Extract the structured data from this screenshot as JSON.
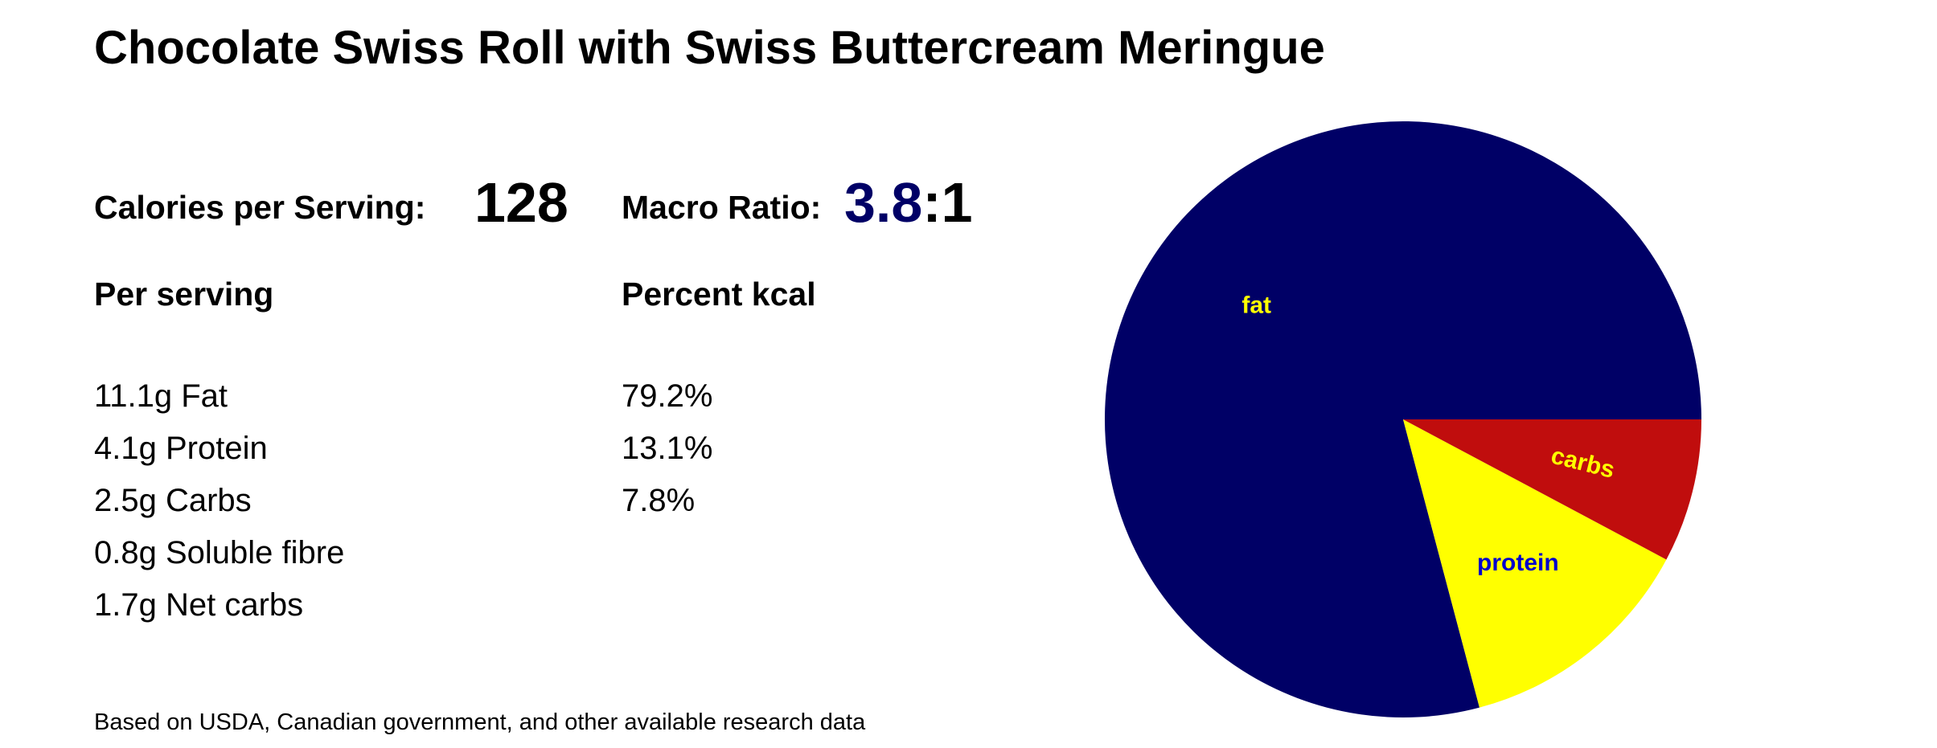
{
  "title": "Chocolate Swiss Roll with Swiss Buttercream Meringue",
  "calories": {
    "label": "Calories per Serving:",
    "value": "128"
  },
  "macro_ratio": {
    "label": "Macro Ratio:",
    "value": "3.8",
    "suffix": ":1"
  },
  "per_serving": {
    "heading": "Per serving",
    "items": [
      "11.1g Fat",
      "4.1g Protein",
      "2.5g Carbs",
      "0.8g Soluble fibre",
      "1.7g Net carbs"
    ]
  },
  "percent_kcal": {
    "heading": "Percent kcal",
    "items": [
      "79.2%",
      "13.1%",
      "7.8%"
    ]
  },
  "footnote": "Based on USDA, Canadian government, and other available research data",
  "chart_data": {
    "type": "pie",
    "slices": [
      {
        "label": "fat",
        "value": 79.2,
        "color": "#000066",
        "label_color": "#ffff00"
      },
      {
        "label": "protein",
        "value": 13.1,
        "color": "#ffff00",
        "label_color": "#0000cc"
      },
      {
        "label": "carbs",
        "value": 7.8,
        "color": "#c00d0d",
        "label_color": "#ffff00"
      }
    ]
  }
}
